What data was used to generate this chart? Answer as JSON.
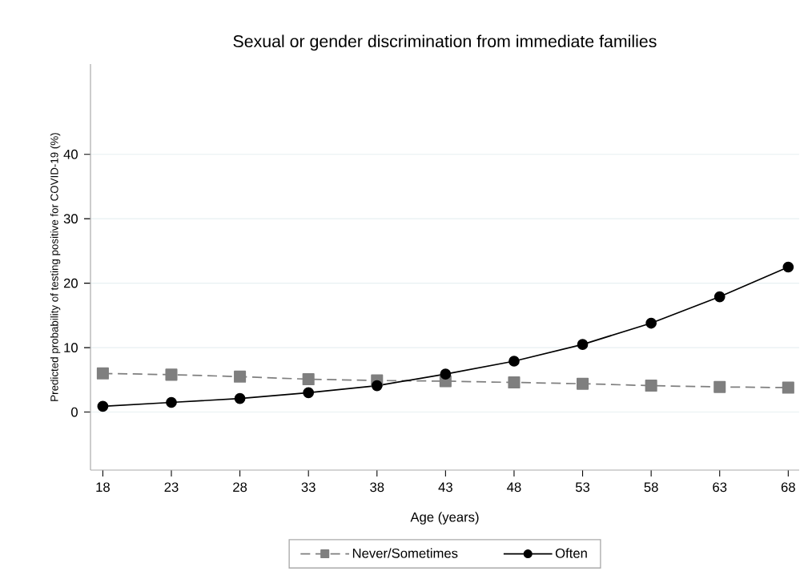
{
  "chart_data": {
    "type": "line",
    "title": "Sexual or gender discrimination from immediate families",
    "xlabel": "Age (years)",
    "ylabel": "Predicted probability of testing positive for COVID-19 (%)",
    "x": [
      18,
      23,
      28,
      33,
      38,
      43,
      48,
      53,
      58,
      63,
      68
    ],
    "series": [
      {
        "name": "Never/Sometimes",
        "color": "#7f7f7f",
        "marker": "square",
        "line_style": "dashed",
        "values": [
          6.0,
          5.8,
          5.5,
          5.1,
          4.9,
          4.8,
          4.6,
          4.4,
          4.1,
          3.9,
          3.8
        ]
      },
      {
        "name": "Often",
        "color": "#000000",
        "marker": "circle",
        "line_style": "solid",
        "values": [
          0.9,
          1.5,
          2.1,
          3.0,
          4.1,
          5.9,
          7.9,
          10.5,
          13.8,
          17.9,
          22.5
        ]
      }
    ],
    "xlim": [
      17.1,
      68.8
    ],
    "xticks": [
      18,
      23,
      28,
      33,
      38,
      43,
      48,
      53,
      58,
      63,
      68
    ],
    "ylim": [
      -9,
      54
    ],
    "yticks": [
      0,
      10,
      20,
      30,
      40
    ],
    "grid": "y",
    "legend": "bottom"
  }
}
